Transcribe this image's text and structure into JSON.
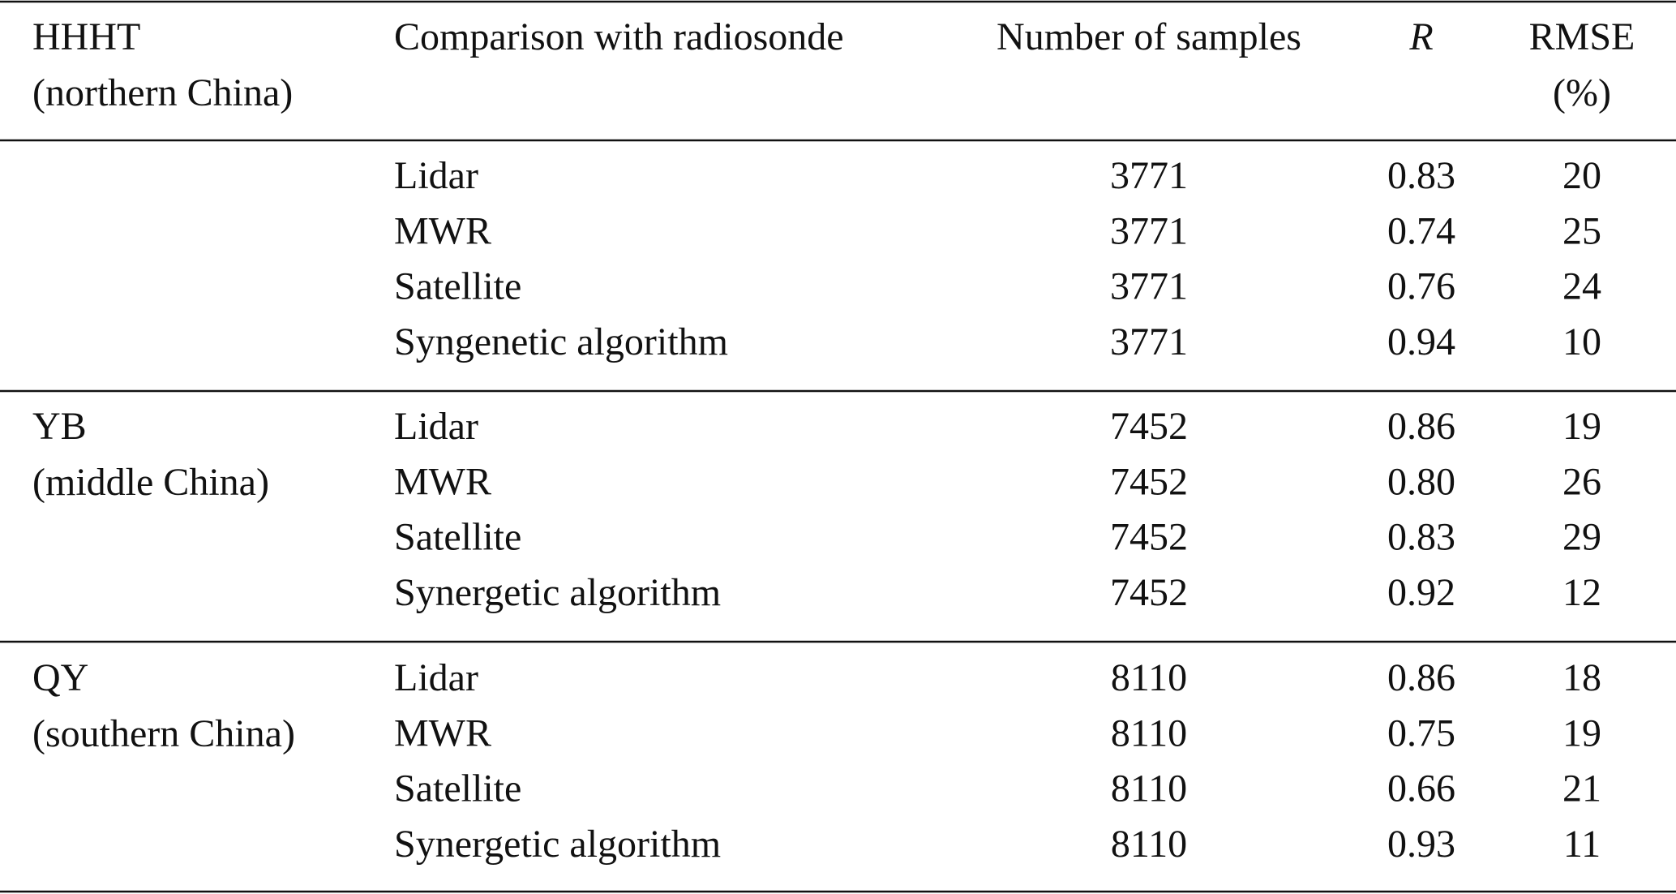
{
  "table": {
    "header": {
      "site": [
        "HHHT",
        "(northern China)"
      ],
      "comparison": "Comparison with radiosonde",
      "samples": "Number of samples",
      "r": "R",
      "rmse": [
        "RMSE",
        "(%)"
      ]
    },
    "groups": [
      {
        "site": [],
        "rows": [
          [
            "Lidar",
            "3771",
            "0.83",
            "20"
          ],
          [
            "MWR",
            "3771",
            "0.74",
            "25"
          ],
          [
            "Satellite",
            "3771",
            "0.76",
            "24"
          ],
          [
            "Syngenetic algorithm",
            "3771",
            "0.94",
            "10"
          ]
        ]
      },
      {
        "site": [
          "YB",
          "(middle China)"
        ],
        "rows": [
          [
            "Lidar",
            "7452",
            "0.86",
            "19"
          ],
          [
            "MWR",
            "7452",
            "0.80",
            "26"
          ],
          [
            "Satellite",
            "7452",
            "0.83",
            "29"
          ],
          [
            "Synergetic algorithm",
            "7452",
            "0.92",
            "12"
          ]
        ]
      },
      {
        "site": [
          "QY",
          "(southern China)"
        ],
        "rows": [
          [
            "Lidar",
            "8110",
            "0.86",
            "18"
          ],
          [
            "MWR",
            "8110",
            "0.75",
            "19"
          ],
          [
            "Satellite",
            "8110",
            "0.66",
            "21"
          ],
          [
            "Synergetic algorithm",
            "8110",
            "0.93",
            "11"
          ]
        ]
      }
    ]
  }
}
